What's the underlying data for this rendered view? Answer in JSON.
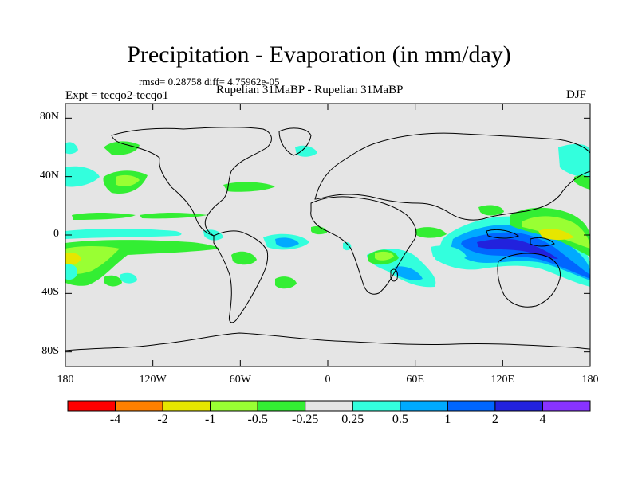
{
  "title": "Precipitation - Evaporation (in mm/day)",
  "stats": "rmsd= 0.28758 diff= 4.75962e-05",
  "expt": "Expt = tecqo2-tecqo1",
  "subtitle": "Rupelian  31MaBP - Rupelian  31MaBP",
  "season": "DJF",
  "axes": {
    "lat_ticks": [
      {
        "label": "80N",
        "value": 80
      },
      {
        "label": "40N",
        "value": 40
      },
      {
        "label": "0",
        "value": 0
      },
      {
        "label": "40S",
        "value": -40
      },
      {
        "label": "80S",
        "value": -80
      }
    ],
    "lon_ticks": [
      {
        "label": "180",
        "value": -180
      },
      {
        "label": "120W",
        "value": -120
      },
      {
        "label": "60W",
        "value": -60
      },
      {
        "label": "0",
        "value": 0
      },
      {
        "label": "60E",
        "value": 60
      },
      {
        "label": "120E",
        "value": 120
      },
      {
        "label": "180",
        "value": 180
      }
    ],
    "lon_range": [
      -180,
      180
    ],
    "lat_range": [
      -90,
      90
    ]
  },
  "colorbar": {
    "labels": [
      "-4",
      "-2",
      "-1",
      "-0.5",
      "-0.25",
      "0.25",
      "0.5",
      "1",
      "2",
      "4"
    ],
    "colors": [
      "#ff0000",
      "#ff8000",
      "#e6e600",
      "#99ff33",
      "#33ee33",
      "#e5e5e5",
      "#33ffdd",
      "#00aaff",
      "#0066ff",
      "#2222dd",
      "#8833ff"
    ]
  },
  "colors": {
    "background": "#e5e5e5",
    "coast": "#000000"
  }
}
